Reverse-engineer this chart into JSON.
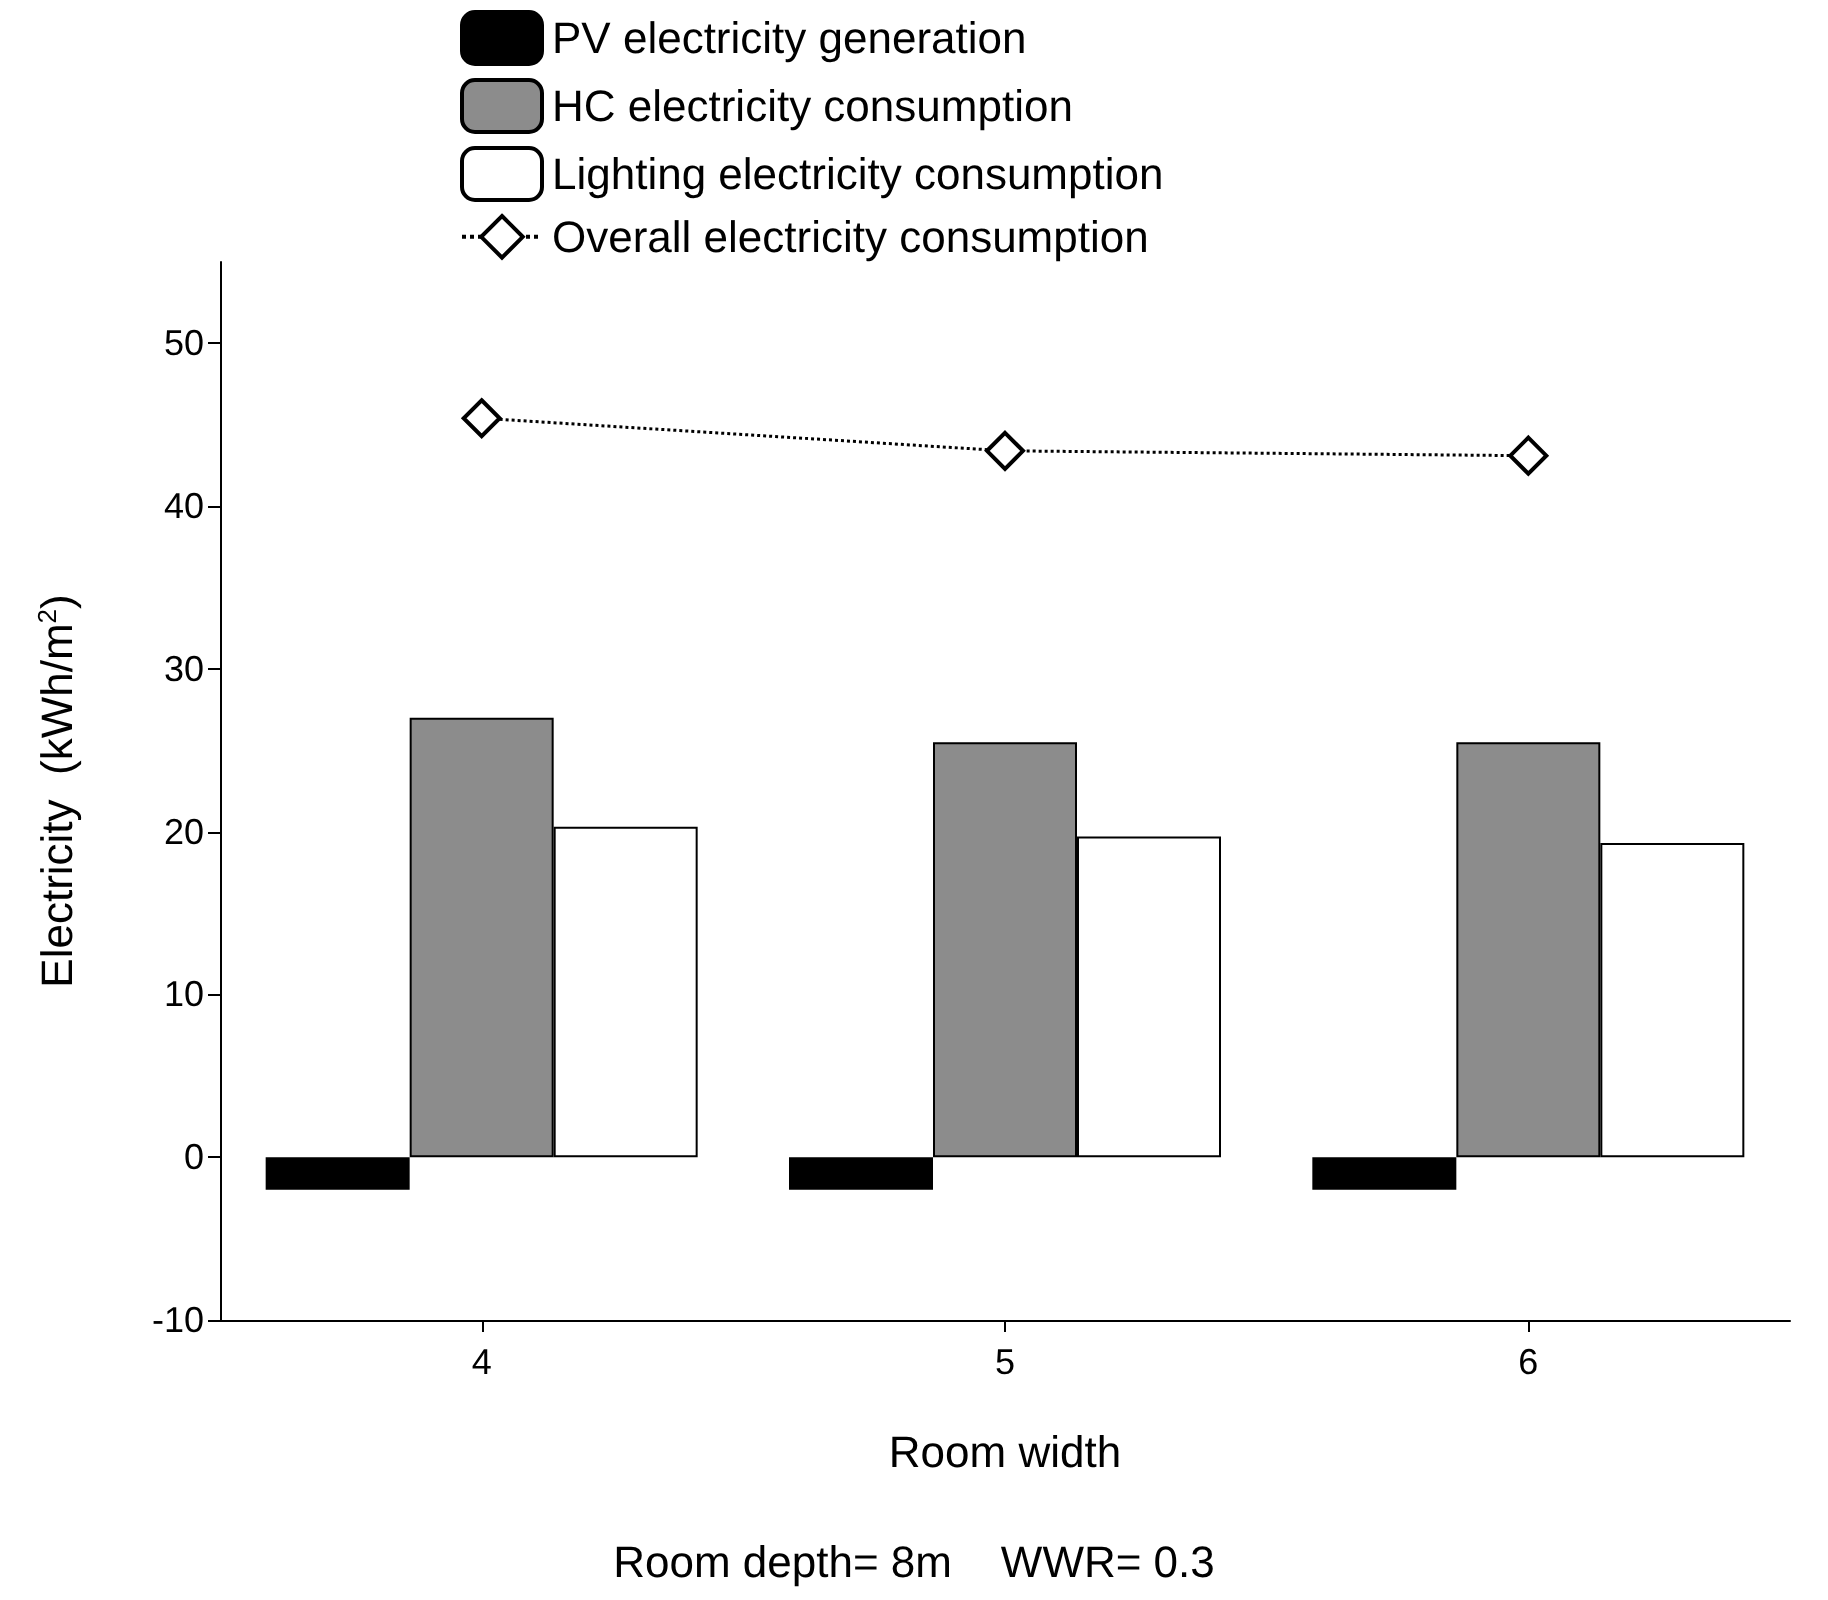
{
  "chart_data": {
    "type": "bar",
    "xlabel": "Room width",
    "ylabel": "Electricity  (kWh/m$^{2}$)",
    "categories": [
      "4",
      "5",
      "6"
    ],
    "series": [
      {
        "name": "PV electricity generation",
        "color": "#000000",
        "values": [
          -2,
          -2,
          -2
        ]
      },
      {
        "name": "HC electricity consumption",
        "color": "#8c8c8c",
        "values": [
          27,
          25.5,
          25.5
        ]
      },
      {
        "name": "Lighting electricity consumption",
        "color": "#ffffff",
        "values": [
          20.3,
          19.7,
          19.3
        ]
      },
      {
        "name": "Overall electricity consumption",
        "type": "line",
        "color": "#000000",
        "values": [
          45.4,
          43.4,
          43.1
        ],
        "marker": "diamond",
        "line_style": "dotted"
      }
    ],
    "ylim": [
      -10,
      55
    ],
    "yticks": [
      -10,
      0,
      10,
      20,
      30,
      40,
      50
    ],
    "grid": false,
    "legend": "top left",
    "annotations": [
      "Room depth= 8m    WWR= 0.3"
    ]
  }
}
